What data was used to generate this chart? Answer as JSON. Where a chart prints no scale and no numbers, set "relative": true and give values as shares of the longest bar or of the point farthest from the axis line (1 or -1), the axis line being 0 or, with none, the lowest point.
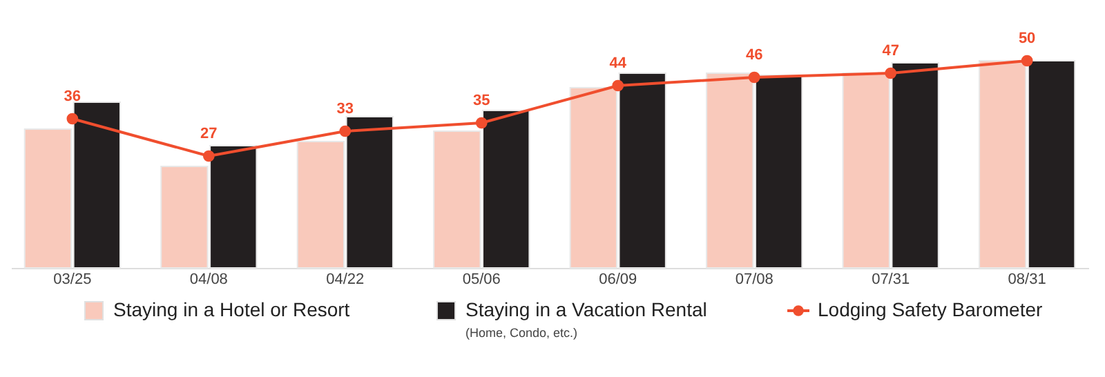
{
  "chart_data": [
    {
      "type": "bar",
      "relative": true,
      "categories": [
        "03/25",
        "04/08",
        "04/22",
        "05/06",
        "06/09",
        "07/08",
        "07/31",
        "08/31"
      ],
      "series": [
        {
          "name": "Staying in a Hotel or Resort",
          "color": "#f9c9bb",
          "values": [
            0.67,
            0.49,
            0.61,
            0.66,
            0.87,
            0.94,
            0.94,
            1.0
          ]
        },
        {
          "name": "Staying in a Vacation Rental",
          "color": "#231f20",
          "values": [
            0.8,
            0.59,
            0.73,
            0.76,
            0.94,
            0.93,
            0.99,
            1.0
          ]
        }
      ],
      "annotations": [
        "(Home, Condo, etc.)"
      ],
      "legend": "bottom"
    },
    {
      "type": "line",
      "categories": [
        "03/25",
        "04/08",
        "04/22",
        "05/06",
        "06/09",
        "07/08",
        "07/31",
        "08/31"
      ],
      "series": [
        {
          "name": "Lodging Safety Barometer",
          "color": "#f04e2e",
          "values": [
            36,
            27,
            33,
            35,
            44,
            46,
            47,
            50
          ]
        }
      ],
      "marker": "circle",
      "data_labels": true,
      "legend": "bottom",
      "tick_labels": false
    }
  ]
}
